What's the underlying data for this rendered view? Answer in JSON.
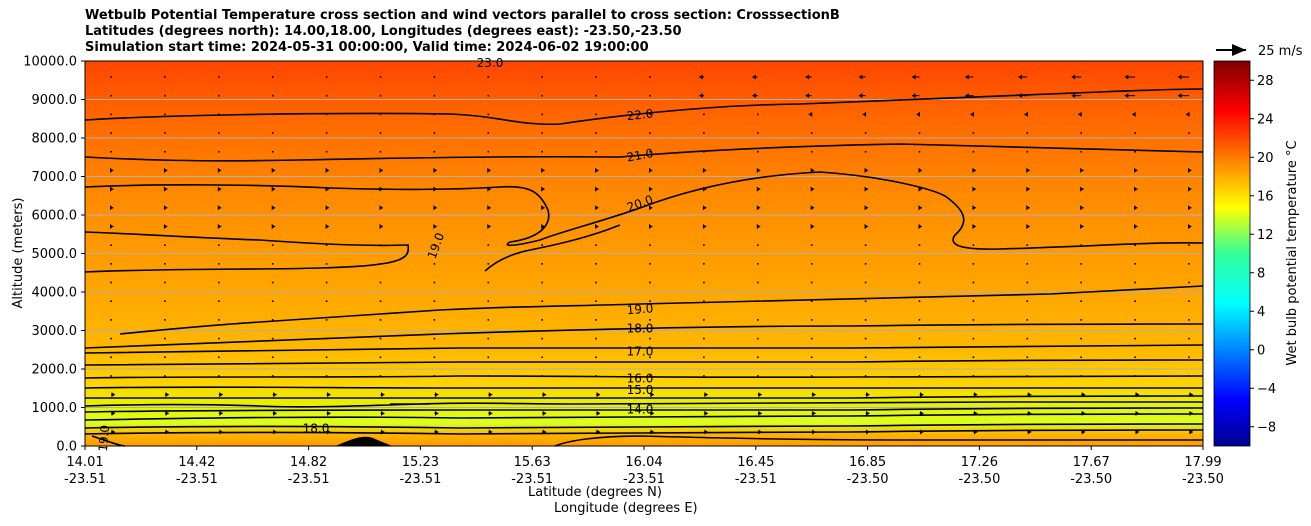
{
  "chart_data": {
    "type": "heatmap",
    "title_lines": [
      "Wetbulb Potential Temperature cross section and wind vectors parallel to cross section: CrosssectionB",
      "Latitudes (degrees north): 14.00,18.00, Longitudes (degrees east): -23.50,-23.50",
      "Simulation start time: 2024-05-31 00:00:00, Valid time: 2024-06-02 19:00:00"
    ],
    "xlabel": "Latitude (degrees N)",
    "xlabel2": "Longitude (degrees E)",
    "ylabel": "Altitude (meters)",
    "ylim": [
      0,
      10000
    ],
    "y_ticks": [
      "0.0",
      "1000.0",
      "2000.0",
      "3000.0",
      "4000.0",
      "5000.0",
      "6000.0",
      "7000.0",
      "8000.0",
      "9000.0",
      "10000.0"
    ],
    "x_ticks": [
      {
        "lat": "14.01",
        "lon": "-23.51"
      },
      {
        "lat": "14.42",
        "lon": "-23.51"
      },
      {
        "lat": "14.82",
        "lon": "-23.51"
      },
      {
        "lat": "15.23",
        "lon": "-23.51"
      },
      {
        "lat": "15.63",
        "lon": "-23.51"
      },
      {
        "lat": "16.04",
        "lon": "-23.51"
      },
      {
        "lat": "16.45",
        "lon": "-23.51"
      },
      {
        "lat": "16.85",
        "lon": "-23.50"
      },
      {
        "lat": "17.26",
        "lon": "-23.50"
      },
      {
        "lat": "17.67",
        "lon": "-23.50"
      },
      {
        "lat": "17.99",
        "lon": "-23.50"
      }
    ],
    "grid": "horizontal",
    "colorbar": {
      "label": "Wet bulb potential temperature °C",
      "range": [
        -10,
        30
      ],
      "ticks": [
        "−8",
        "−4",
        "0",
        "4",
        "8",
        "12",
        "16",
        "20",
        "24",
        "28"
      ]
    },
    "wind_key": "25 m/s",
    "contour_labels": [
      {
        "text": "22.0",
        "altitude": 8600
      },
      {
        "text": "21.0",
        "altitude": 7550
      },
      {
        "text": "20.0",
        "altitude": 6300
      },
      {
        "text": "19.0",
        "altitude": 3550
      },
      {
        "text": "18.0",
        "altitude": 3050
      },
      {
        "text": "17.0",
        "altitude": 2450
      },
      {
        "text": "16.0",
        "altitude": 1750
      },
      {
        "text": "15.0",
        "altitude": 1450
      },
      {
        "text": "14.0",
        "altitude": 950
      },
      {
        "text": "19.0",
        "altitude": 200
      },
      {
        "text": "18.0",
        "altitude": 450
      },
      {
        "text": "19.0",
        "altitude": 5200
      },
      {
        "text": "23.0",
        "altitude": 9950
      }
    ]
  }
}
